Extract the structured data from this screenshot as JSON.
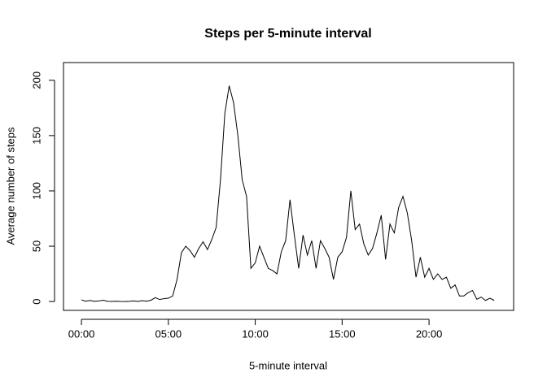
{
  "chart_data": {
    "type": "line",
    "title": "Steps per 5-minute interval",
    "x_label": "5-minute interval",
    "y_label": "Average number of steps",
    "x": [
      0,
      15,
      30,
      45,
      60,
      75,
      90,
      105,
      120,
      135,
      150,
      165,
      180,
      195,
      210,
      225,
      240,
      255,
      270,
      285,
      300,
      315,
      330,
      345,
      360,
      375,
      390,
      405,
      420,
      435,
      450,
      465,
      480,
      495,
      510,
      525,
      540,
      555,
      570,
      585,
      600,
      615,
      630,
      645,
      660,
      675,
      690,
      705,
      720,
      735,
      750,
      765,
      780,
      795,
      810,
      825,
      840,
      855,
      870,
      885,
      900,
      915,
      930,
      945,
      960,
      975,
      990,
      1005,
      1020,
      1035,
      1050,
      1065,
      1080,
      1095,
      1110,
      1125,
      1140,
      1155,
      1170,
      1185,
      1200,
      1215,
      1230,
      1245,
      1260,
      1275,
      1290,
      1305,
      1320,
      1335,
      1350,
      1365,
      1380,
      1395,
      1410,
      1425
    ],
    "values": [
      1.5,
      0.3,
      1.0,
      0.2,
      0.5,
      1.2,
      0.2,
      0.1,
      0.3,
      0.1,
      0,
      0.2,
      0.5,
      0.1,
      0.8,
      0.3,
      1.2,
      3.5,
      1.8,
      2.6,
      3,
      5,
      20,
      44,
      50,
      46,
      40,
      48,
      54,
      47,
      56,
      67,
      110,
      170,
      195,
      180,
      150,
      110,
      95,
      30,
      35,
      50,
      40,
      30,
      28,
      25,
      45,
      55,
      92,
      60,
      30,
      60,
      42,
      55,
      30,
      55,
      48,
      40,
      20,
      40,
      45,
      58,
      100,
      65,
      70,
      52,
      42,
      48,
      62,
      78,
      38,
      70,
      62,
      85,
      95,
      80,
      55,
      22,
      40,
      22,
      30,
      20,
      25,
      20,
      22,
      12,
      15,
      5,
      5,
      8,
      10,
      2,
      4,
      1,
      3,
      1
    ],
    "color": "#000000",
    "xlim": [
      -62,
      1492
    ],
    "ylim": [
      -8,
      216
    ],
    "xticks": [
      {
        "value": 0,
        "label": "00:00"
      },
      {
        "value": 300,
        "label": "05:00"
      },
      {
        "value": 600,
        "label": "10:00"
      },
      {
        "value": 900,
        "label": "15:00"
      },
      {
        "value": 1200,
        "label": "20:00"
      }
    ],
    "yticks": [
      0,
      50,
      100,
      150,
      200
    ]
  }
}
